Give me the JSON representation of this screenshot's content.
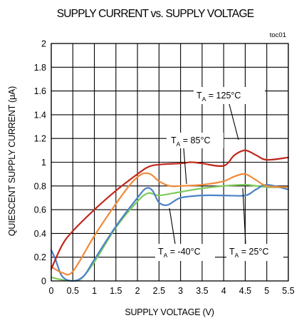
{
  "chart_data": {
    "type": "line",
    "title": "SUPPLY CURRENT vs. SUPPLY VOLTAGE",
    "xlabel": "SUPPLY VOLTAGE (V)",
    "ylabel": "QUIESCENT SUPPLY CURRENT (μA)",
    "ylabel_parts": [
      "QUIESCENT SUPPLY CURRENT (",
      "μ",
      "A)"
    ],
    "corner_label": "toc01",
    "xlim": [
      0,
      5.5
    ],
    "ylim": [
      0,
      2
    ],
    "x_ticks": [
      0,
      0.5,
      1,
      1.5,
      2,
      2.5,
      3,
      3.5,
      4,
      4.5,
      5,
      5.5
    ],
    "x_tick_labels": [
      "0",
      "0.5",
      "1",
      "1.5",
      "2",
      "2.5",
      "3",
      "3.5",
      "4",
      "4.5",
      "5",
      "5.5"
    ],
    "y_ticks": [
      0,
      0.2,
      0.4,
      0.6,
      0.8,
      1,
      1.2,
      1.4,
      1.6,
      1.8,
      2
    ],
    "y_tick_labels": [
      "0",
      "0.2",
      "0.4",
      "0.6",
      "0.8",
      "1",
      "1.2",
      "1.4",
      "1.6",
      "1.8",
      "2"
    ],
    "grid": true,
    "series": [
      {
        "name": "TA = 125°C",
        "color": "#c0281c",
        "x": [
          0,
          0.25,
          0.5,
          1.0,
          1.5,
          2.0,
          2.25,
          2.5,
          3.0,
          3.25,
          3.5,
          4.0,
          4.25,
          4.5,
          4.75,
          5.0,
          5.5
        ],
        "y": [
          0.1,
          0.3,
          0.42,
          0.6,
          0.76,
          0.9,
          0.96,
          0.98,
          0.99,
          1.0,
          0.99,
          0.97,
          1.06,
          1.1,
          1.06,
          1.02,
          1.04
        ]
      },
      {
        "name": "TA = 85°C",
        "color": "#f08a3a",
        "x": [
          0,
          0.25,
          0.5,
          1.0,
          1.5,
          1.85,
          2.1,
          2.3,
          2.5,
          2.75,
          3.0,
          3.5,
          4.0,
          4.25,
          4.5,
          4.75,
          5.0,
          5.5
        ],
        "y": [
          0.12,
          0.07,
          0.08,
          0.38,
          0.65,
          0.82,
          0.9,
          0.9,
          0.84,
          0.8,
          0.8,
          0.81,
          0.84,
          0.88,
          0.9,
          0.85,
          0.8,
          0.79
        ]
      },
      {
        "name": "TA = -40°C",
        "color": "#4a82c8",
        "x": [
          0,
          0.1,
          0.25,
          0.5,
          0.75,
          1.0,
          1.5,
          2.0,
          2.2,
          2.35,
          2.5,
          2.7,
          3.0,
          3.5,
          4.0,
          4.5,
          4.75,
          5.0,
          5.5
        ],
        "y": [
          0.26,
          0.18,
          0.04,
          0.0,
          0.04,
          0.18,
          0.46,
          0.7,
          0.78,
          0.76,
          0.66,
          0.64,
          0.7,
          0.72,
          0.72,
          0.72,
          0.77,
          0.81,
          0.77
        ]
      },
      {
        "name": "TA = 25°C",
        "color": "#7ecb5a",
        "x": [
          0,
          0.25,
          0.5,
          0.7,
          1.0,
          1.5,
          2.0,
          2.25,
          2.5,
          3.0,
          3.5,
          4.0,
          4.5,
          5.0,
          5.5
        ],
        "y": [
          0.03,
          0.01,
          0.0,
          0.02,
          0.16,
          0.45,
          0.67,
          0.74,
          0.72,
          0.75,
          0.78,
          0.8,
          0.81,
          0.79,
          0.79
        ]
      }
    ],
    "annotations": [
      {
        "main": "T",
        "sub": "A",
        "rest": " = 125°C"
      },
      {
        "main": "T",
        "sub": "A",
        "rest": " = 85°C"
      },
      {
        "main": "T",
        "sub": "A",
        "rest": " = -40°C"
      },
      {
        "main": "T",
        "sub": "A",
        "rest": " = 25°C"
      }
    ]
  }
}
